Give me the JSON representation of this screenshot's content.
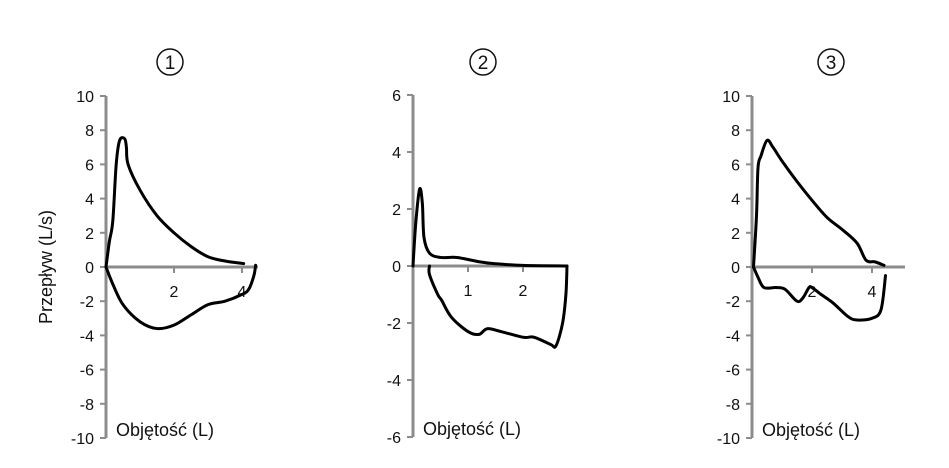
{
  "chart_data": [
    {
      "type": "line",
      "title": "1",
      "xlabel": "Objętość (L)",
      "ylabel": "Przepływ (L/s)",
      "xlim": [
        0,
        4.45
      ],
      "ylim": [
        -10,
        10
      ],
      "xticks": [
        2,
        4
      ],
      "yticks": [
        10,
        8,
        6,
        4,
        2,
        0,
        -2,
        -4,
        -6,
        -8,
        -10
      ],
      "grid": false,
      "series": [
        {
          "x": [
            0,
            0.1,
            0.2,
            0.3,
            0.4,
            0.55,
            0.6,
            0.65,
            1,
            1.5,
            2,
            2.5,
            3,
            3.5,
            4.05
          ],
          "y": [
            0,
            1.5,
            2.7,
            6,
            7.4,
            7.5,
            7.0,
            6,
            4.5,
            3,
            2,
            1.2,
            0.6,
            0.35,
            0.2
          ]
        },
        {
          "x": [
            0,
            0.2,
            0.5,
            1,
            1.5,
            2,
            2.5,
            3,
            3.5,
            4,
            4.2,
            4.35,
            4.4
          ],
          "y": [
            0,
            -1,
            -2.2,
            -3.2,
            -3.6,
            -3.4,
            -2.8,
            -2.2,
            -2,
            -1.6,
            -1.3,
            -0.5,
            0.1
          ]
        }
      ]
    },
    {
      "type": "line",
      "title": "2",
      "xlabel": "Objętość (L)",
      "ylabel": "",
      "xlim": [
        0,
        2.8
      ],
      "ylim": [
        -6,
        6
      ],
      "xticks": [
        1,
        2
      ],
      "yticks": [
        6,
        4,
        2,
        0,
        -2,
        -4,
        -6
      ],
      "grid": false,
      "series": [
        {
          "x": [
            0,
            0.05,
            0.12,
            0.17,
            0.2,
            0.3,
            0.5,
            0.8,
            1.2,
            1.5,
            2,
            2.8
          ],
          "y": [
            0,
            1.5,
            2.7,
            2.2,
            1,
            0.45,
            0.3,
            0.3,
            0.15,
            0.08,
            0.02,
            0
          ]
        },
        {
          "x": [
            2.8,
            2.78,
            2.72,
            2.6,
            2.5,
            2.2,
            2,
            1.6,
            1.35,
            1.2,
            1,
            0.7,
            0.52,
            0.45,
            0.3,
            0.3
          ],
          "y": [
            0,
            -1,
            -2,
            -2.8,
            -2.75,
            -2.5,
            -2.5,
            -2.3,
            -2.2,
            -2.4,
            -2.3,
            -1.8,
            -1.2,
            -1,
            -0.3,
            0
          ]
        }
      ]
    },
    {
      "type": "line",
      "title": "3",
      "xlabel": "Objętość (L)",
      "ylabel": "",
      "xlim": [
        0,
        5.1
      ],
      "ylim": [
        -10,
        10
      ],
      "xticks": [
        2,
        4
      ],
      "yticks": [
        10,
        8,
        6,
        4,
        2,
        0,
        -2,
        -4,
        -6,
        -8,
        -10
      ],
      "grid": false,
      "series": [
        {
          "x": [
            0.05,
            0.15,
            0.2,
            0.3,
            0.5,
            0.7,
            1,
            1.5,
            2,
            2.5,
            3,
            3.5,
            3.8,
            4.1,
            4.4
          ],
          "y": [
            0,
            3,
            5.8,
            6.5,
            7.4,
            7.0,
            6.2,
            5,
            3.9,
            2.9,
            2.2,
            1.4,
            0.4,
            0.3,
            0.1
          ]
        },
        {
          "x": [
            0.05,
            0.2,
            0.4,
            0.8,
            1.1,
            1.5,
            1.7,
            1.9,
            2.0,
            2.3,
            2.7,
            3.2,
            3.5,
            4.0,
            4.3,
            4.45
          ],
          "y": [
            0,
            -0.6,
            -1.2,
            -1.2,
            -1.3,
            -2,
            -1.8,
            -1.2,
            -1.2,
            -1.6,
            -2.1,
            -2.9,
            -3.1,
            -3.0,
            -2.5,
            -0.5
          ]
        }
      ]
    }
  ]
}
